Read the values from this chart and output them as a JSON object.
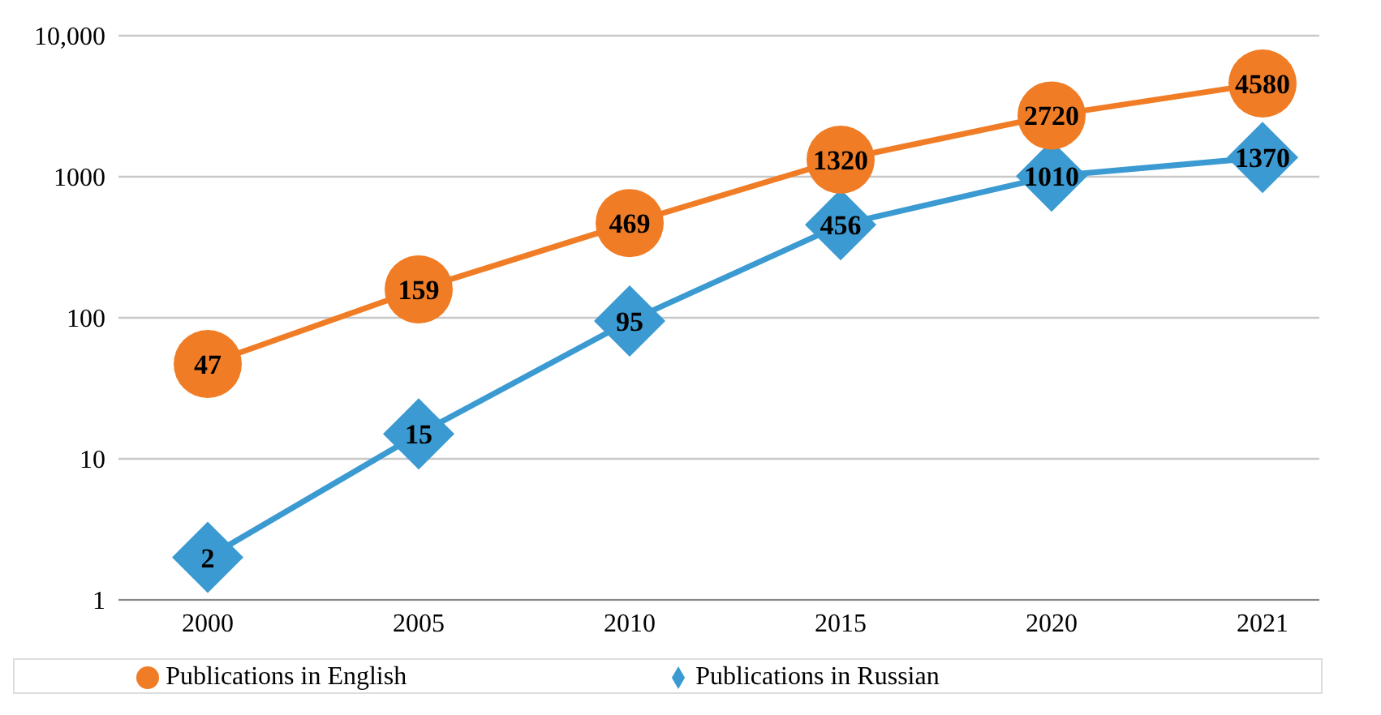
{
  "chart_data": {
    "type": "line",
    "log": "y",
    "categories": [
      "2000",
      "2005",
      "2010",
      "2015",
      "2020",
      "2021"
    ],
    "series": [
      {
        "name": "Publications in Russian",
        "color": "#3a9ad1",
        "marker": "diamond",
        "values": [
          2,
          15,
          95,
          456,
          1010,
          1370
        ]
      },
      {
        "name": "Publications in English",
        "color": "#f07d26",
        "marker": "circle",
        "values": [
          47,
          159,
          469,
          1320,
          2720,
          4580
        ]
      }
    ],
    "ylim": [
      1,
      10000
    ],
    "yticks": [
      1,
      10,
      100,
      1000,
      {
        "value": 10000,
        "label": "10,000"
      }
    ],
    "grid": "y",
    "legend": "bottom",
    "data_labels": true
  }
}
